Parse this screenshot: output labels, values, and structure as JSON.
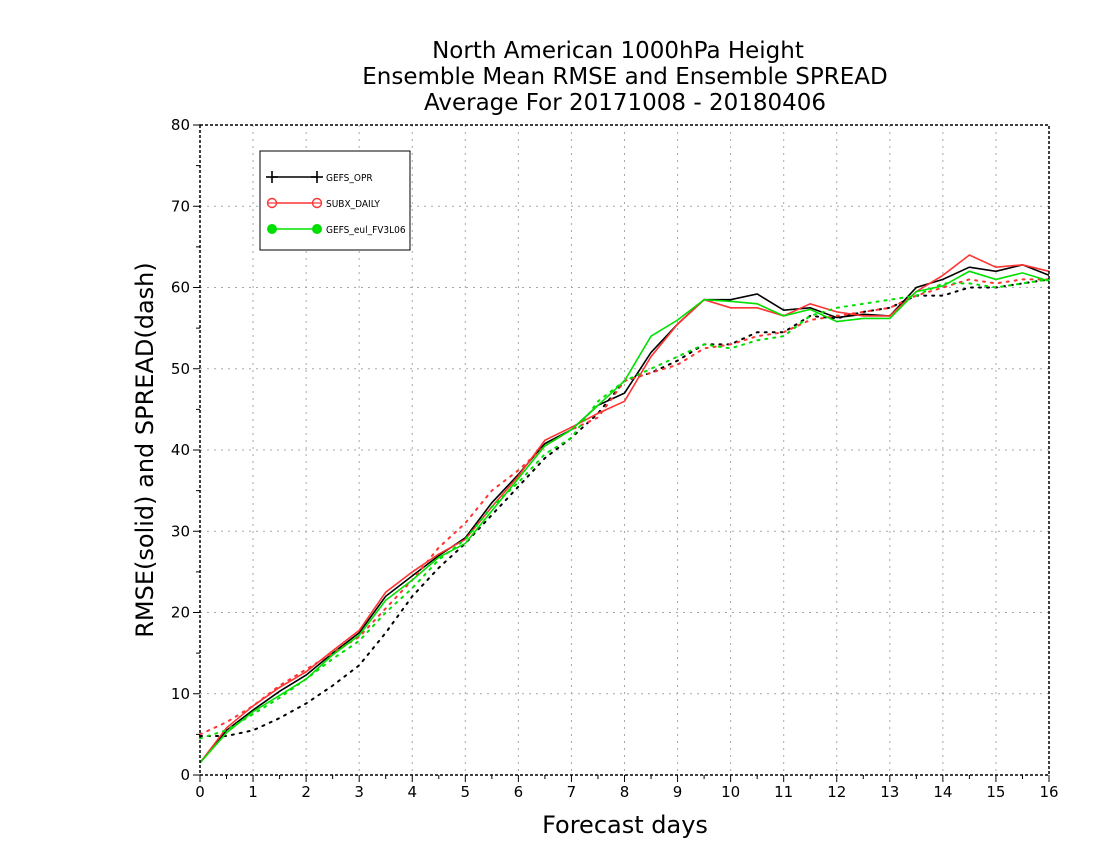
{
  "chart_data": {
    "type": "line",
    "title_lines": [
      "North American 1000hPa Height",
      "Ensemble Mean RMSE and Ensemble SPREAD",
      "Average For 20171008 - 20180406"
    ],
    "xlabel": "Forecast days",
    "ylabel": "RMSE(solid) and SPREAD(dash)",
    "xlim": [
      0,
      16
    ],
    "ylim": [
      0,
      80
    ],
    "xticks": [
      0,
      1,
      2,
      3,
      4,
      5,
      6,
      7,
      8,
      9,
      10,
      11,
      12,
      13,
      14,
      15,
      16
    ],
    "yticks": [
      0,
      10,
      20,
      30,
      40,
      50,
      60,
      70,
      80
    ],
    "grid": true,
    "legend_position": "top-left",
    "x": [
      0,
      0.5,
      1,
      1.5,
      2,
      2.5,
      3,
      3.5,
      4,
      4.5,
      5,
      5.5,
      6,
      6.5,
      7,
      7.5,
      8,
      8.5,
      9,
      9.5,
      10,
      10.5,
      11,
      11.5,
      12,
      12.5,
      13,
      13.5,
      14,
      14.5,
      15,
      15.5,
      16
    ],
    "series": [
      {
        "name": "GEFS_OPR",
        "color": "#000000",
        "marker": "plus",
        "rmse": [
          1.5,
          5.5,
          8.0,
          10.3,
          12.3,
          15.0,
          17.5,
          22.0,
          24.5,
          27.0,
          29.2,
          33.5,
          37.0,
          40.8,
          42.5,
          45.5,
          47.0,
          52.0,
          55.5,
          58.5,
          58.5,
          59.2,
          57.2,
          57.5,
          56.3,
          56.7,
          56.5,
          60.0,
          61.0,
          62.5,
          62.0,
          62.8,
          61.5
        ],
        "spread": [
          4.8,
          4.8,
          5.5,
          7.0,
          8.8,
          11.0,
          13.5,
          17.5,
          22.0,
          25.5,
          28.5,
          32.0,
          35.5,
          39.0,
          41.5,
          44.5,
          48.5,
          49.5,
          51.0,
          53.0,
          53.0,
          54.5,
          54.5,
          56.5,
          56.2,
          57.0,
          57.5,
          59.0,
          59.0,
          60.0,
          60.0,
          60.5,
          61.0
        ]
      },
      {
        "name": "SUBX_DAILY",
        "color": "#ff3333",
        "marker": "circle",
        "rmse": [
          1.5,
          5.8,
          8.5,
          10.8,
          12.7,
          15.3,
          17.8,
          22.5,
          25.0,
          27.2,
          29.0,
          33.0,
          36.8,
          41.2,
          42.8,
          44.5,
          46.0,
          51.5,
          55.5,
          58.5,
          57.5,
          57.5,
          56.5,
          58.0,
          57.0,
          56.5,
          56.5,
          59.5,
          61.5,
          64.0,
          62.5,
          62.8,
          62.0
        ],
        "spread": [
          5.0,
          6.5,
          8.5,
          11.0,
          13.0,
          15.0,
          17.0,
          20.5,
          24.0,
          28.0,
          31.0,
          35.0,
          37.5,
          40.5,
          42.5,
          44.0,
          48.5,
          49.5,
          50.5,
          52.5,
          53.0,
          54.0,
          54.5,
          56.0,
          56.5,
          57.0,
          57.5,
          59.0,
          60.0,
          61.0,
          60.5,
          61.0,
          61.0
        ]
      },
      {
        "name": "GEFS_eul_FV3L06",
        "color": "#00e000",
        "marker": "dot",
        "rmse": [
          1.5,
          5.2,
          7.8,
          9.8,
          11.8,
          14.8,
          17.2,
          21.5,
          24.0,
          26.8,
          28.5,
          32.5,
          36.5,
          40.5,
          42.5,
          45.5,
          48.5,
          54.0,
          56.0,
          58.5,
          58.3,
          58.0,
          56.5,
          57.3,
          55.8,
          56.2,
          56.2,
          59.5,
          60.2,
          62.0,
          61.0,
          61.8,
          60.8
        ],
        "spread": [
          4.5,
          5.5,
          7.5,
          9.5,
          11.8,
          14.3,
          16.5,
          20.0,
          23.0,
          26.5,
          29.0,
          33.0,
          36.0,
          39.5,
          41.5,
          46.0,
          48.5,
          50.0,
          51.5,
          53.0,
          52.5,
          53.5,
          54.0,
          56.5,
          57.5,
          58.0,
          58.5,
          59.0,
          60.5,
          60.5,
          60.0,
          60.5,
          61.0
        ]
      }
    ]
  }
}
